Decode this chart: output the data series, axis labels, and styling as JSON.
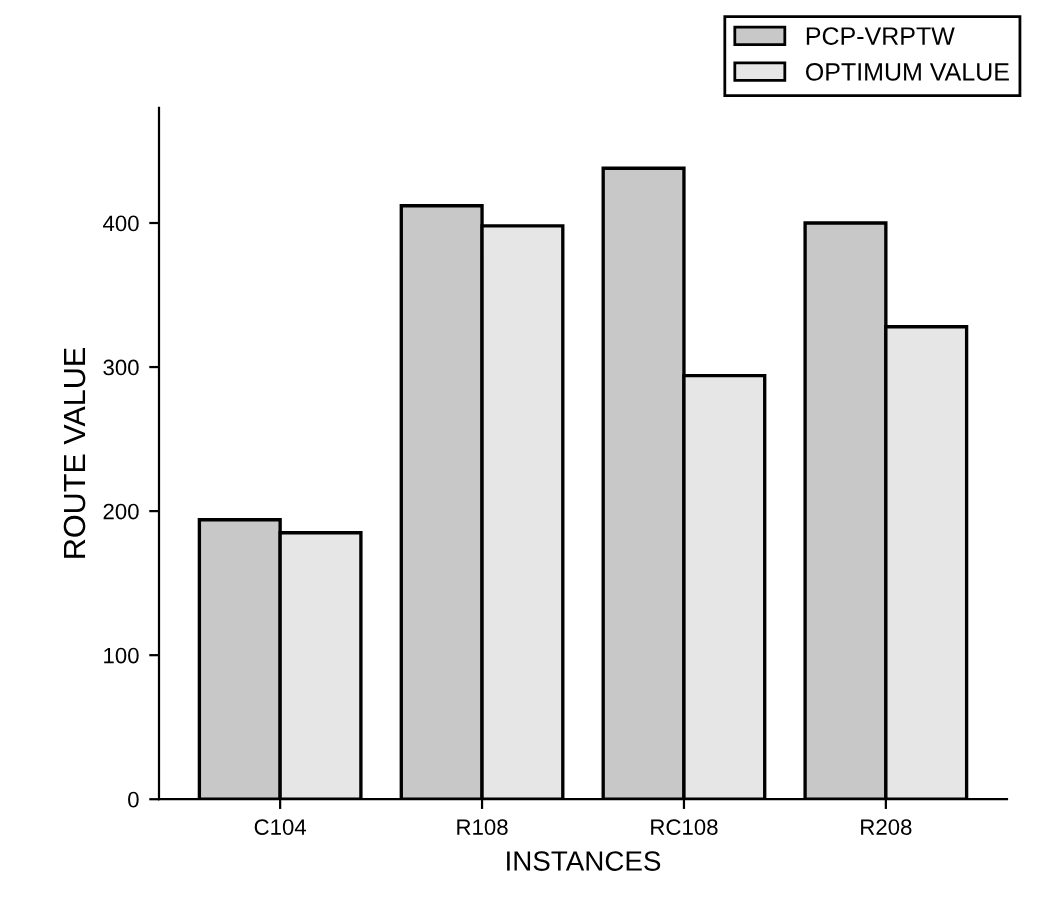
{
  "chart_data": {
    "type": "bar",
    "xlabel": "INSTANCES",
    "ylabel": "ROUTE VALUE",
    "categories": [
      "C104",
      "R108",
      "RC108",
      "R208"
    ],
    "series": [
      {
        "name": "PCP-VRPTW",
        "color": "#c8c8c8",
        "values": [
          194,
          412,
          438,
          400
        ]
      },
      {
        "name": "OPTIMUM VALUE",
        "color": "#e6e6e6",
        "values": [
          185,
          398,
          294,
          328
        ]
      }
    ],
    "ylim": [
      0,
      480
    ],
    "yticks": [
      0,
      100,
      200,
      300,
      400
    ],
    "grid": false,
    "legend": "top right"
  }
}
